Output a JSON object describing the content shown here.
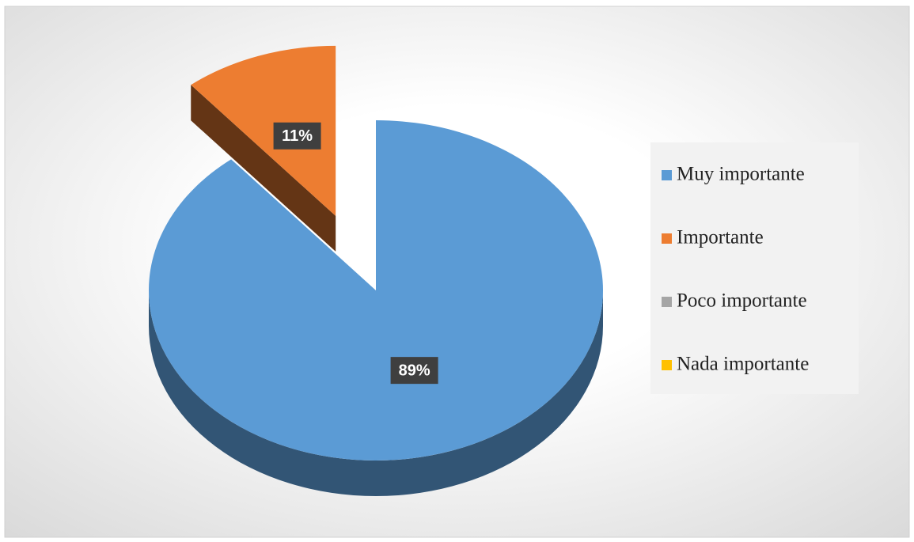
{
  "chart_data": {
    "type": "pie",
    "categories": [
      "Muy importante",
      "Importante",
      "Poco importante",
      "Nada importante"
    ],
    "values": [
      89,
      11,
      0,
      0
    ],
    "value_labels": [
      "89%",
      "11%",
      null,
      null
    ],
    "colors": [
      "#5b9bd5",
      "#ed7d31",
      "#a5a5a5",
      "#ffc000"
    ],
    "exploded": "Importante",
    "legend": "right"
  }
}
